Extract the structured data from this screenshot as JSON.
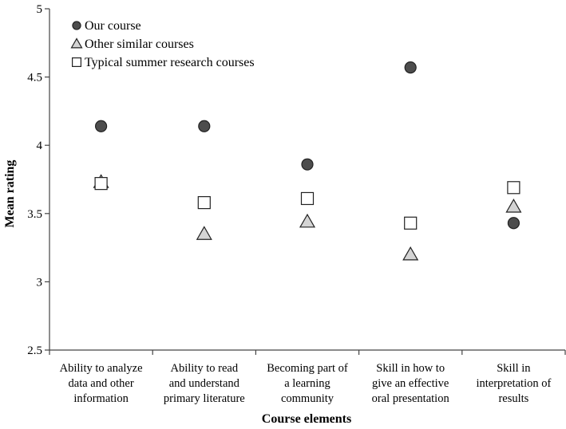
{
  "chart_data": {
    "type": "scatter",
    "ylabel": "Mean rating",
    "xlabel": "Course elements",
    "ylim": [
      2.5,
      5
    ],
    "yticks": [
      "2.5",
      "3",
      "3.5",
      "4",
      "4.5",
      "5"
    ],
    "grid": false,
    "legend_position": "top-left",
    "categories": [
      [
        "Ability to analyze",
        "data and other",
        "information"
      ],
      [
        "Ability to read",
        "and understand",
        "primary literature"
      ],
      [
        "Becoming part of",
        "a learning",
        "community"
      ],
      [
        "Skill in how to",
        "give an effective",
        "oral presentation"
      ],
      [
        "Skill in",
        "interpretation of",
        "results"
      ]
    ],
    "series": [
      {
        "name": "Our course",
        "marker": "circle",
        "color": "#4d4d4d",
        "values": [
          4.14,
          4.14,
          3.86,
          4.57,
          3.43
        ]
      },
      {
        "name": "Other similar courses",
        "marker": "triangle",
        "color": "#d4d4d4",
        "values": [
          3.73,
          3.35,
          3.44,
          3.2,
          3.55
        ]
      },
      {
        "name": "Typical summer research courses",
        "marker": "square",
        "color": "#ffffff",
        "values": [
          3.72,
          3.58,
          3.61,
          3.43,
          3.69
        ]
      }
    ]
  }
}
